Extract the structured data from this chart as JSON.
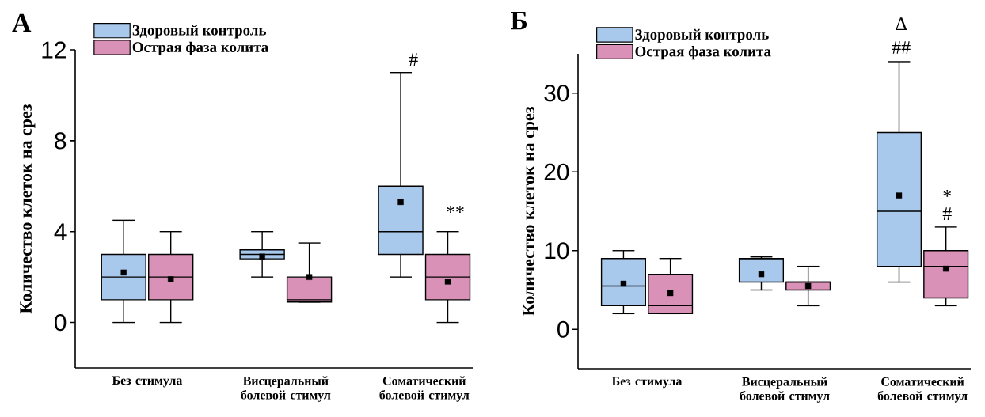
{
  "chart_data": [
    {
      "type": "box",
      "title": "А",
      "ylabel": "Количество клеток на срез",
      "categories": [
        "Без стимула",
        "Висцеральный болевой стимул",
        "Соматический болевой стимул"
      ],
      "series": [
        {
          "name": "Здоровый контроль",
          "color": "#a9c9ec",
          "boxes": [
            {
              "low": 0,
              "q1": 1,
              "median": 2,
              "q3": 3,
              "high": 4.5,
              "mean": 2.2
            },
            {
              "low": 2,
              "q1": 2.8,
              "median": 3,
              "q3": 3.2,
              "high": 4,
              "mean": 2.9
            },
            {
              "low": 2,
              "q1": 3,
              "median": 4,
              "q3": 6,
              "high": 11,
              "mean": 5.3
            }
          ]
        },
        {
          "name": "Острая фаза колита",
          "color": "#d991b7",
          "boxes": [
            {
              "low": 0,
              "q1": 1,
              "median": 2,
              "q3": 3,
              "high": 4,
              "mean": 1.9
            },
            {
              "low": 0.9,
              "q1": 0.9,
              "median": 1,
              "q3": 2,
              "high": 3.5,
              "mean": 2
            },
            {
              "low": 0,
              "q1": 1,
              "median": 2,
              "q3": 3,
              "high": 4,
              "mean": 1.8
            }
          ]
        }
      ],
      "ylim": [
        -2,
        12
      ],
      "yticks": [
        0,
        4,
        8,
        12
      ],
      "legend": "top left",
      "marker": "square",
      "annotations": [
        "#",
        "**"
      ]
    },
    {
      "type": "box",
      "title": "Б",
      "ylabel": "Количество клеток на срез",
      "categories": [
        "Без стимула",
        "Висцеральный болевой стимул",
        "Соматический болевой стимул"
      ],
      "series": [
        {
          "name": "Здоровый контроль",
          "color": "#a9c9ec",
          "boxes": [
            {
              "low": 2,
              "q1": 3,
              "median": 5.5,
              "q3": 9,
              "high": 10,
              "mean": 5.8
            },
            {
              "low": 5,
              "q1": 6,
              "median": 9,
              "q3": 9,
              "high": 9.2,
              "mean": 7
            },
            {
              "low": 6,
              "q1": 8,
              "median": 15,
              "q3": 25,
              "high": 34,
              "mean": 17
            }
          ]
        },
        {
          "name": "Острая фаза колита",
          "color": "#d991b7",
          "boxes": [
            {
              "low": 2,
              "q1": 2,
              "median": 3,
              "q3": 7,
              "high": 9,
              "mean": 4.6
            },
            {
              "low": 3,
              "q1": 5,
              "median": 6,
              "q3": 6,
              "high": 8,
              "mean": 5.5
            },
            {
              "low": 3,
              "q1": 4,
              "median": 8,
              "q3": 10,
              "high": 13,
              "mean": 7.7
            }
          ]
        }
      ],
      "ylim": [
        -5,
        35
      ],
      "yticks": [
        0,
        10,
        20,
        30
      ],
      "legend": "top left",
      "marker": "square",
      "annotations": [
        "∆",
        "##",
        "*",
        "#"
      ]
    }
  ]
}
